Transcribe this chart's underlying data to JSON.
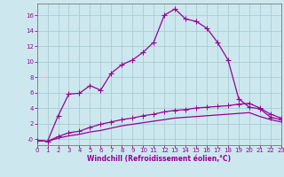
{
  "xlabel": "Windchill (Refroidissement éolien,°C)",
  "background_color": "#cce8ee",
  "grid_color": "#aaccd4",
  "line_color": "#990099",
  "x_ticks": [
    0,
    1,
    2,
    3,
    4,
    5,
    6,
    7,
    8,
    9,
    10,
    11,
    12,
    13,
    14,
    15,
    16,
    17,
    18,
    19,
    20,
    21,
    22,
    23
  ],
  "ylim": [
    -0.8,
    17.5
  ],
  "xlim": [
    0,
    23
  ],
  "series1_x": [
    0,
    1,
    2,
    3,
    4,
    5,
    6,
    7,
    8,
    9,
    10,
    11,
    12,
    13,
    14,
    15,
    16,
    17,
    18,
    19,
    20,
    21,
    22,
    23
  ],
  "series1_y": [
    -0.2,
    -0.3,
    3.0,
    5.8,
    5.9,
    6.9,
    6.3,
    8.5,
    9.6,
    10.2,
    11.2,
    12.5,
    16.0,
    16.8,
    15.5,
    15.2,
    14.3,
    12.5,
    10.2,
    5.2,
    4.1,
    3.9,
    2.8,
    2.5
  ],
  "series2_x": [
    0,
    1,
    2,
    3,
    4,
    5,
    6,
    7,
    8,
    9,
    10,
    11,
    12,
    13,
    14,
    15,
    16,
    17,
    18,
    19,
    20,
    21,
    22,
    23
  ],
  "series2_y": [
    -0.2,
    -0.3,
    0.3,
    0.8,
    1.0,
    1.5,
    1.9,
    2.2,
    2.5,
    2.7,
    3.0,
    3.2,
    3.5,
    3.7,
    3.8,
    4.0,
    4.1,
    4.2,
    4.3,
    4.5,
    4.6,
    4.0,
    3.2,
    2.7
  ],
  "series3_x": [
    0,
    1,
    2,
    3,
    4,
    5,
    6,
    7,
    8,
    9,
    10,
    11,
    12,
    13,
    14,
    15,
    16,
    17,
    18,
    19,
    20,
    21,
    22,
    23
  ],
  "series3_y": [
    -0.2,
    -0.3,
    0.1,
    0.4,
    0.6,
    0.9,
    1.1,
    1.4,
    1.7,
    1.9,
    2.1,
    2.3,
    2.5,
    2.7,
    2.8,
    2.9,
    3.0,
    3.1,
    3.2,
    3.3,
    3.4,
    2.9,
    2.5,
    2.2
  ],
  "yticks": [
    0,
    2,
    4,
    6,
    8,
    10,
    12,
    14,
    16
  ],
  "ytick_labels": [
    "-0",
    "2",
    "4",
    "6",
    "8",
    "10",
    "12",
    "14",
    "16"
  ],
  "tick_fontsize": 5.0,
  "xlabel_fontsize": 5.5,
  "marker_size": 2.5,
  "line_width": 0.9
}
